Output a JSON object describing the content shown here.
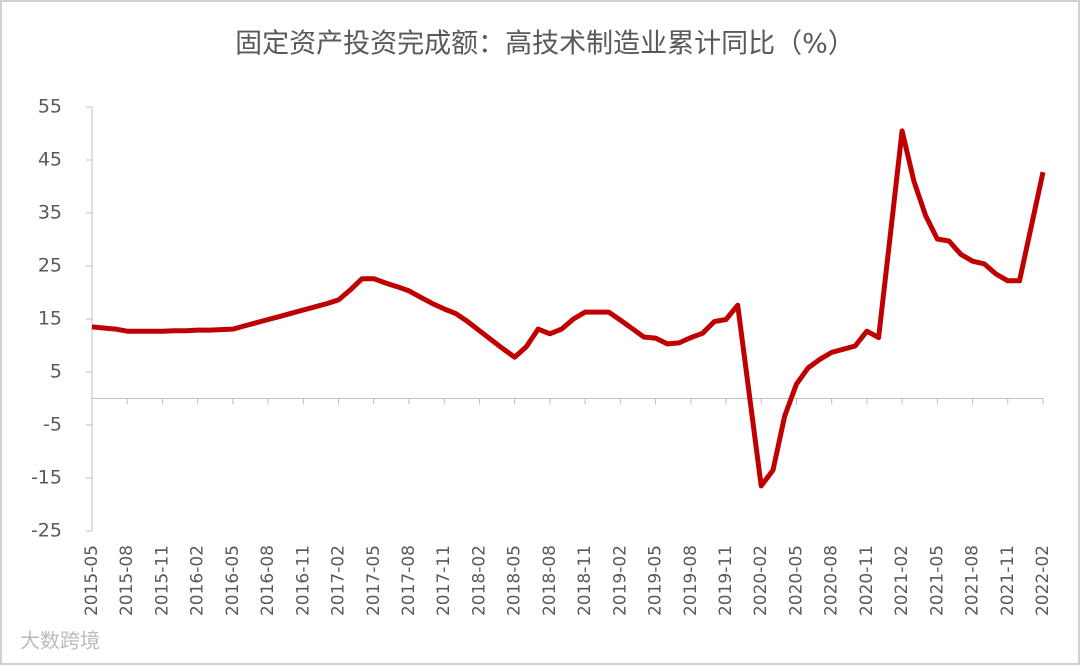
{
  "chart_data": {
    "type": "line",
    "title": "固定资产投资完成额：高技术制造业累计同比（%）",
    "watermark": "大数跨境",
    "categories": [
      "2015-05",
      null,
      null,
      "2015-08",
      null,
      null,
      "2015-11",
      null,
      null,
      "2016-02",
      null,
      null,
      "2016-05",
      null,
      null,
      "2016-08",
      null,
      null,
      "2016-11",
      null,
      null,
      "2017-02",
      null,
      null,
      "2017-05",
      null,
      null,
      "2017-08",
      null,
      null,
      "2017-11",
      null,
      null,
      "2018-02",
      null,
      null,
      "2018-05",
      null,
      null,
      "2018-08",
      null,
      null,
      "2018-11",
      null,
      null,
      "2019-02",
      null,
      null,
      "2019-05",
      null,
      null,
      "2019-08",
      null,
      null,
      "2019-11",
      null,
      null,
      "2020-02",
      null,
      null,
      "2020-05",
      null,
      null,
      "2020-08",
      null,
      null,
      "2020-11",
      null,
      null,
      "2021-02",
      null,
      null,
      "2021-05",
      null,
      null,
      "2021-08",
      null,
      null,
      "2021-11",
      null,
      null,
      "2022-02"
    ],
    "series": [
      {
        "name": "高技术制造业累计同比",
        "color": "#c00000",
        "values": [
          13.5,
          13.3,
          13.1,
          12.7,
          12.7,
          12.7,
          12.7,
          12.8,
          12.8,
          12.9,
          12.9,
          13.0,
          13.1,
          13.7,
          14.3,
          14.9,
          15.5,
          16.1,
          16.7,
          17.3,
          17.9,
          18.6,
          20.5,
          22.6,
          22.6,
          21.8,
          21.1,
          20.3,
          19.1,
          17.9,
          16.9,
          16.0,
          14.5,
          12.8,
          11.1,
          9.4,
          7.8,
          9.8,
          13.1,
          12.2,
          13.1,
          15.0,
          16.3,
          16.3,
          16.3,
          14.8,
          13.2,
          11.6,
          11.4,
          10.3,
          10.5,
          11.5,
          12.3,
          14.5,
          14.9,
          17.6,
          0.5,
          -16.5,
          -13.5,
          -3.3,
          2.7,
          5.8,
          7.4,
          8.7,
          9.3,
          9.9,
          12.7,
          11.5,
          31,
          50.5,
          41,
          34.5,
          30.1,
          29.7,
          27.2,
          25.9,
          25.4,
          23.5,
          22.2,
          22.2,
          32.5,
          42.7
        ]
      }
    ],
    "ylim": [
      -25,
      55
    ],
    "yticks": [
      -25,
      -15,
      -5,
      5,
      15,
      25,
      35,
      45,
      55
    ]
  }
}
